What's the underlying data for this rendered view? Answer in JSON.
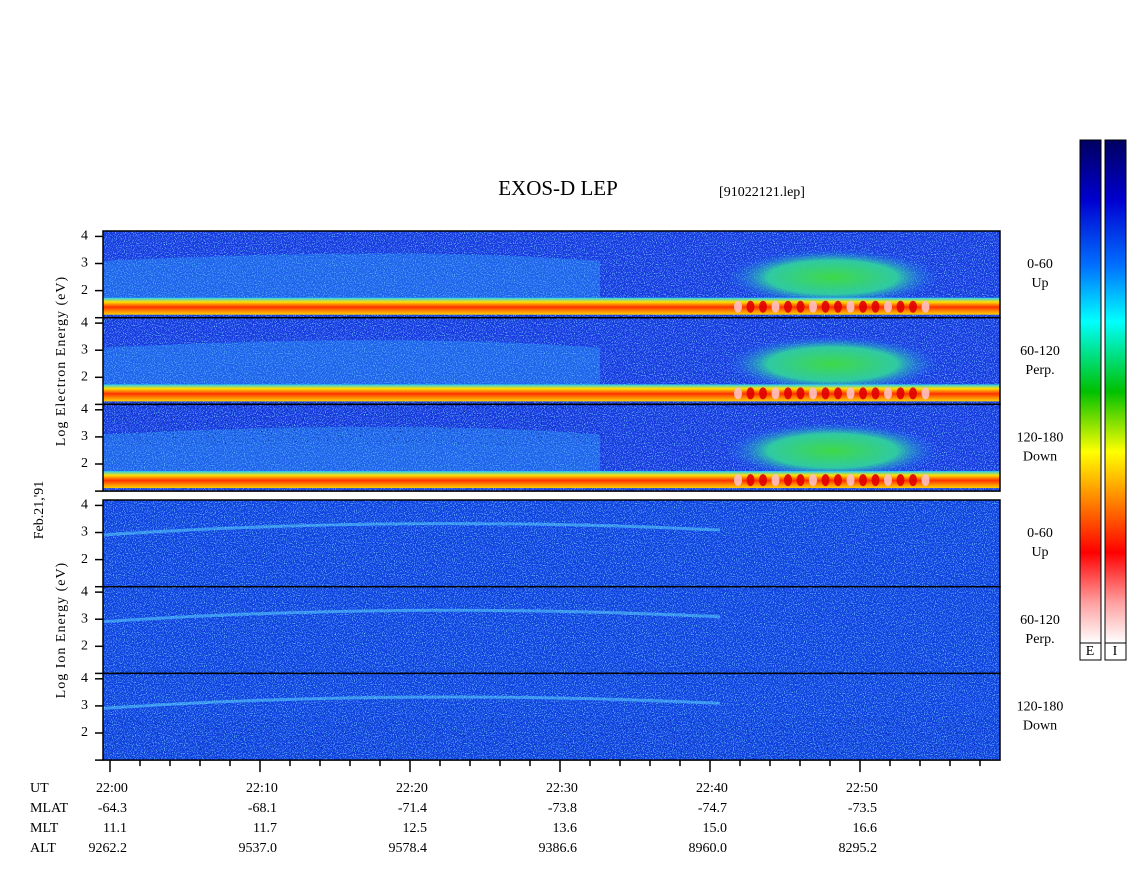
{
  "header": {
    "title": "EXOS-D LEP",
    "file": "[91022121.lep]",
    "date": "Feb.21,'91"
  },
  "chart_data": {
    "type": "spectrogram",
    "panels": [
      {
        "ylabel": "Log  Electron  Energy (eV)",
        "species": "electron",
        "ylim": [
          1,
          4.2
        ],
        "yticks": [
          2,
          3,
          4
        ],
        "subpanels": [
          {
            "label": "0-60",
            "direction": "Up"
          },
          {
            "label": "60-120",
            "direction": "Perp."
          },
          {
            "label": "120-180",
            "direction": "Down"
          }
        ]
      },
      {
        "ylabel": "Log  Ion  Energy (eV)",
        "species": "ion",
        "ylim": [
          1,
          4.2
        ],
        "yticks": [
          2,
          3,
          4
        ],
        "subpanels": [
          {
            "label": "0-60",
            "direction": "Up"
          },
          {
            "label": "60-120",
            "direction": "Perp."
          },
          {
            "label": "120-180",
            "direction": "Down"
          }
        ]
      }
    ],
    "colorbar_labels": [
      "E",
      "I"
    ]
  },
  "orbit": {
    "rows": [
      {
        "name": "UT",
        "values": [
          "22:00",
          "22:10",
          "22:20",
          "22:30",
          "22:40",
          "22:50"
        ]
      },
      {
        "name": "MLAT",
        "values": [
          "-64.3",
          "-68.1",
          "-71.4",
          "-73.8",
          "-74.7",
          "-73.5"
        ]
      },
      {
        "name": "MLT",
        "values": [
          "11.1",
          "11.7",
          "12.5",
          "13.6",
          "15.0",
          "16.6"
        ]
      },
      {
        "name": "ALT",
        "values": [
          "9262.2",
          "9537.0",
          "9578.4",
          "9386.6",
          "8960.0",
          "8295.2"
        ]
      }
    ]
  }
}
